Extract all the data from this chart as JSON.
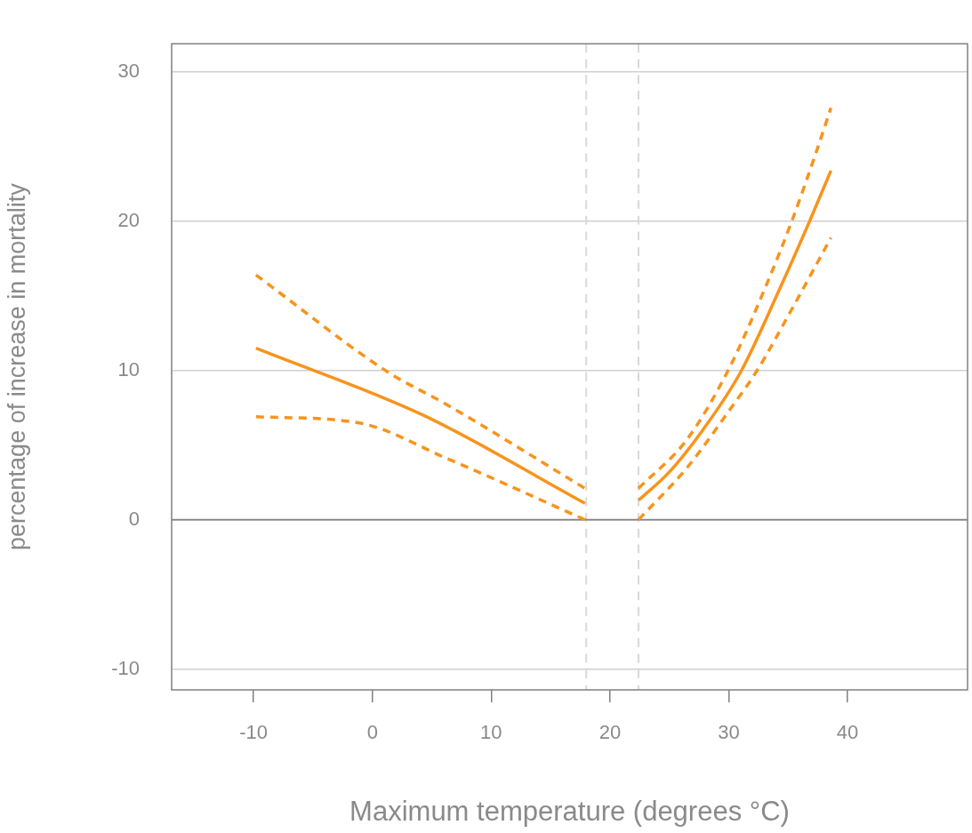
{
  "chart_data": {
    "type": "line",
    "xlabel": "Maximum temperature (degrees °C)",
    "ylabel": "percentage of increase in mortality",
    "xlim": [
      -16.9,
      50.1
    ],
    "ylim": [
      -11.4,
      31.9
    ],
    "xticks": [
      -10,
      0,
      10,
      20,
      30,
      40
    ],
    "yticks": [
      -10,
      0,
      10,
      20,
      30
    ],
    "grid": "y",
    "legend": false,
    "marker": "none",
    "series": [
      {
        "color": "#f7941d",
        "line_style": "solid",
        "x": [
          -9.8,
          4.3,
          17.9,
          null,
          22.4,
          25,
          27.8,
          31.0,
          34.3,
          36.8,
          38.6
        ],
        "values": [
          11.5,
          7.0,
          1.1,
          null,
          1.3,
          3.2,
          6.0,
          9.9,
          15.5,
          20.0,
          23.4
        ]
      },
      {
        "color": "#f7941d",
        "line_style": "dashed",
        "x": [
          -9.8,
          1.3,
          6.3,
          17.9,
          null,
          22.4,
          26.5,
          30.0,
          33.2,
          35.3,
          37.3,
          38.6
        ],
        "values": [
          16.4,
          9.9,
          7.7,
          2.1,
          null,
          2.1,
          5.4,
          10.1,
          15.8,
          20.0,
          24.5,
          27.6
        ]
      },
      {
        "color": "#f7941d",
        "line_style": "dashed",
        "x": [
          -9.8,
          -1.2,
          6.3,
          17.9,
          null,
          22.4,
          26.5,
          30.2,
          32.3,
          35.3,
          38.6
        ],
        "values": [
          6.9,
          6.5,
          4.1,
          0,
          null,
          0,
          3.5,
          7.5,
          9.9,
          14.1,
          18.9
        ]
      }
    ],
    "ref_lines": [
      {
        "axis": "x",
        "value": 18,
        "color": "#d9d9d9",
        "line_style": "dashed"
      },
      {
        "axis": "x",
        "value": 22.4,
        "color": "#d9d9d9",
        "line_style": "dashed"
      },
      {
        "axis": "y",
        "value": 0,
        "color": "#808080",
        "line_style": "solid"
      }
    ]
  }
}
